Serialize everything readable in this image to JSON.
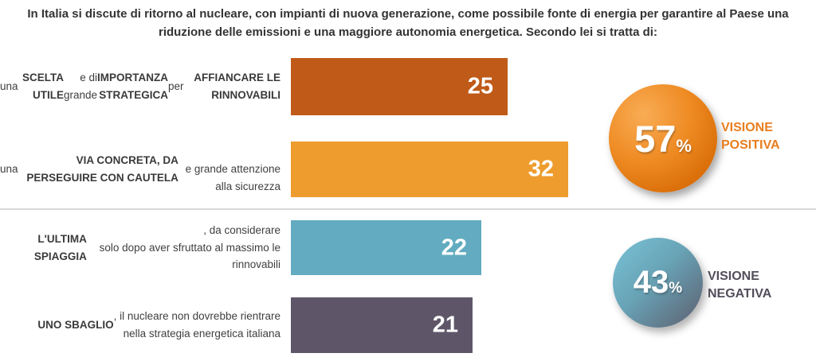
{
  "title": "In Italia si discute di ritorno al nucleare, con impianti di nuova generazione, come possibile fonte di energia per garantire al Paese una riduzione delle emissioni e una maggiore autonomia energetica. Secondo lei si tratta di:",
  "chart_data": {
    "type": "bar",
    "orientation": "horizontal",
    "title": "In Italia si discute di ritorno al nucleare, con impianti di nuova generazione, come possibile fonte di energia per garantire al Paese una riduzione delle emissioni e una maggiore autonomia energetica. Secondo lei si tratta di:",
    "categories": [
      "una SCELTA UTILE e di grande IMPORTANZA STRATEGICA per AFFIANCARE LE RINNOVABILI",
      "una VIA CONCRETA, DA PERSEGUIRE CON CAUTELA e grande attenzione alla sicurezza",
      "L'ULTIMA SPIAGGIA, da considerare solo dopo aver sfruttato al massimo le rinnovabili",
      "UNO SBAGLIO, il nucleare non dovrebbe rientrare nella strategia energetica italiana"
    ],
    "values": [
      25,
      32,
      22,
      21
    ],
    "colors": [
      "#C05A18",
      "#EE9C2D",
      "#62ABC0",
      "#5E5668"
    ],
    "xlim": [
      0,
      32
    ],
    "legend": "off",
    "grid": "off",
    "aggregates": [
      {
        "label": "VISIONE POSITIVA",
        "value": 57,
        "unit": "%",
        "color": "#E87E1E"
      },
      {
        "label": "VISIONE NEGATIVA",
        "value": 43,
        "unit": "%",
        "color": "#544E5C"
      }
    ]
  },
  "bars": [
    {
      "value": "25",
      "label_segments": [
        {
          "t": "una ",
          "b": false
        },
        {
          "t": "SCELTA UTILE",
          "b": true
        },
        {
          "t": " e di grande ",
          "b": false
        },
        {
          "t": "IMPORTANZA\nSTRATEGICA",
          "b": true
        },
        {
          "t": " per ",
          "b": false
        },
        {
          "t": "AFFIANCARE LE RINNOVABILI",
          "b": true
        }
      ]
    },
    {
      "value": "32",
      "label_segments": [
        {
          "t": "una ",
          "b": false
        },
        {
          "t": "VIA CONCRETA, DA PERSEGUIRE CON CAUTELA",
          "b": true
        },
        {
          "t": "\ne grande attenzione alla sicurezza",
          "b": false
        }
      ]
    },
    {
      "value": "22",
      "label_segments": [
        {
          "t": "L'ULTIMA SPIAGGIA",
          "b": true
        },
        {
          "t": ", da considerare\nsolo dopo aver sfruttato al massimo le rinnovabili",
          "b": false
        }
      ]
    },
    {
      "value": "21",
      "label_segments": [
        {
          "t": "UNO SBAGLIO",
          "b": true
        },
        {
          "t": ", il nucleare non dovrebbe rientrare\nnella strategia energetica italiana",
          "b": false
        }
      ]
    }
  ],
  "summary": {
    "positive": {
      "value": "57",
      "unit": "%",
      "label": "VISIONE POSITIVA"
    },
    "negative": {
      "value": "43",
      "unit": "%",
      "label": "VISIONE NEGATIVA"
    }
  }
}
